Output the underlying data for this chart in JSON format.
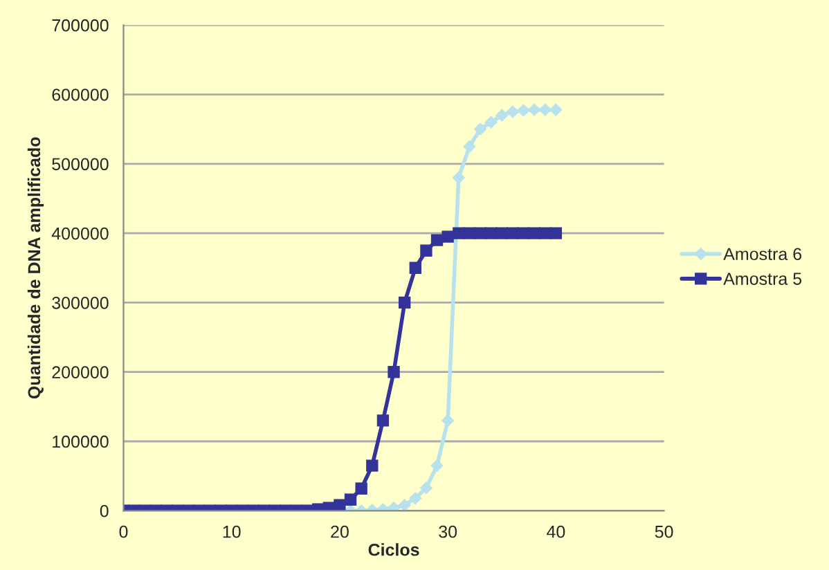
{
  "chart_data": {
    "type": "line",
    "xlabel": "Ciclos",
    "ylabel": "Quantidade de DNA amplificado",
    "x": [
      0,
      1,
      2,
      3,
      4,
      5,
      6,
      7,
      8,
      9,
      10,
      11,
      12,
      13,
      14,
      15,
      16,
      17,
      18,
      19,
      20,
      21,
      22,
      23,
      24,
      25,
      26,
      27,
      28,
      29,
      30,
      31,
      32,
      33,
      34,
      35,
      36,
      37,
      38,
      39,
      40
    ],
    "series": [
      {
        "name": "Amostra 6",
        "color": "#b7e1ec",
        "marker": "diamond",
        "values": [
          null,
          null,
          null,
          null,
          null,
          null,
          null,
          null,
          null,
          null,
          null,
          null,
          null,
          null,
          null,
          null,
          null,
          null,
          null,
          null,
          0,
          0,
          0,
          1000,
          2000,
          4000,
          8000,
          18000,
          33000,
          65000,
          130000,
          480000,
          525000,
          550000,
          560000,
          570000,
          575000,
          577000,
          578000,
          578000,
          578000
        ]
      },
      {
        "name": "Amostra 5",
        "color": "#333399",
        "marker": "square",
        "values": [
          0,
          0,
          0,
          0,
          0,
          0,
          0,
          0,
          0,
          0,
          0,
          0,
          0,
          0,
          0,
          0,
          0,
          0,
          2000,
          4000,
          8000,
          16000,
          32000,
          65000,
          130000,
          200000,
          300000,
          350000,
          375000,
          390000,
          395000,
          400000,
          400000,
          400000,
          400000,
          400000,
          400000,
          400000,
          400000,
          400000,
          400000
        ]
      }
    ],
    "xlim": [
      0,
      50
    ],
    "xticks": [
      0,
      10,
      20,
      30,
      40,
      50
    ],
    "ylim": [
      0,
      700000
    ],
    "yticks": [
      0,
      100000,
      200000,
      300000,
      400000,
      500000,
      600000,
      700000
    ],
    "grid": "y",
    "legend": "right",
    "line_style": "solid"
  }
}
